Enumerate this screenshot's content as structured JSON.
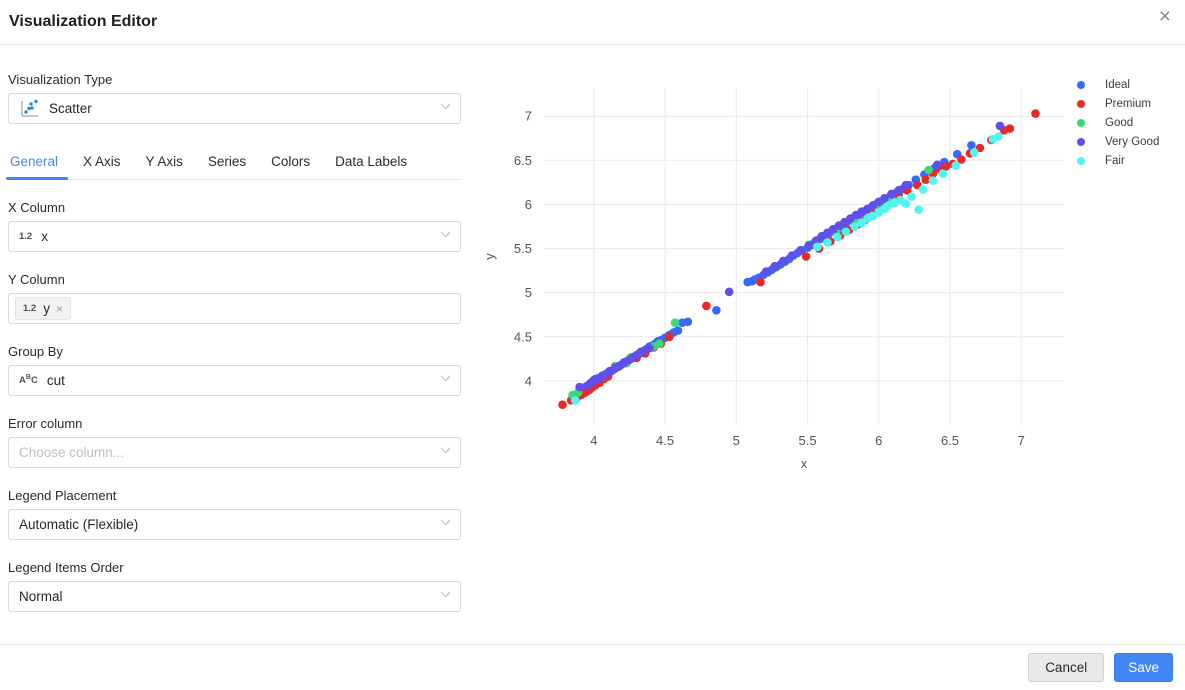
{
  "modal": {
    "title": "Visualization Editor",
    "close_label": "×"
  },
  "editor": {
    "visualization_type": {
      "label": "Visualization Type",
      "value": "Scatter",
      "icon": "scatter-type-icon"
    },
    "tabs": [
      {
        "label": "General",
        "active": true
      },
      {
        "label": "X Axis",
        "active": false
      },
      {
        "label": "Y Axis",
        "active": false
      },
      {
        "label": "Series",
        "active": false
      },
      {
        "label": "Colors",
        "active": false
      },
      {
        "label": "Data Labels",
        "active": false
      }
    ],
    "fields": {
      "x_column": {
        "label": "X Column",
        "value": "x",
        "type_icon": "1.2"
      },
      "y_column": {
        "label": "Y Column",
        "tags": [
          {
            "type_icon": "1.2",
            "value": "y",
            "remove": "×"
          }
        ]
      },
      "group_by": {
        "label": "Group By",
        "value": "cut",
        "type_icon": "ABC"
      },
      "error_column": {
        "label": "Error column",
        "placeholder": "Choose column..."
      },
      "legend_placement": {
        "label": "Legend Placement",
        "value": "Automatic (Flexible)"
      },
      "legend_items_order": {
        "label": "Legend Items Order",
        "value": "Normal"
      }
    },
    "footer": {
      "cancel_label": "Cancel",
      "save_label": "Save"
    }
  },
  "colors": {
    "accent_blue": "#4285f4",
    "grid": "#e9e9e9",
    "tick_text": "#545454"
  },
  "chart_data": {
    "type": "scatter",
    "title": "",
    "xlabel": "x",
    "ylabel": "y",
    "xlim": [
      3.65,
      7.3
    ],
    "ylim": [
      3.5,
      7.32
    ],
    "x_ticks": [
      4,
      4.5,
      5,
      5.5,
      6,
      6.5,
      7
    ],
    "y_ticks": [
      4,
      4.5,
      5,
      5.5,
      6,
      6.5,
      7
    ],
    "grid": true,
    "legend_position": "right",
    "series": [
      {
        "name": "Ideal",
        "color": "#356AFF",
        "points": [
          [
            3.92,
            3.91
          ],
          [
            3.94,
            3.93
          ],
          [
            3.96,
            3.94
          ],
          [
            3.97,
            3.96
          ],
          [
            3.98,
            3.97
          ],
          [
            3.99,
            3.98
          ],
          [
            4.0,
            3.99
          ],
          [
            4.01,
            4.0
          ],
          [
            4.01,
            4.02
          ],
          [
            4.02,
            4.01
          ],
          [
            4.03,
            4.03
          ],
          [
            4.04,
            4.02
          ],
          [
            4.05,
            4.04
          ],
          [
            4.06,
            4.06
          ],
          [
            4.07,
            4.05
          ],
          [
            4.08,
            4.07
          ],
          [
            4.09,
            4.08
          ],
          [
            4.1,
            4.09
          ],
          [
            4.11,
            4.11
          ],
          [
            4.13,
            4.12
          ],
          [
            4.15,
            4.14
          ],
          [
            4.17,
            4.16
          ],
          [
            4.19,
            4.18
          ],
          [
            4.21,
            4.21
          ],
          [
            4.23,
            4.22
          ],
          [
            4.25,
            4.24
          ],
          [
            4.26,
            4.26
          ],
          [
            4.28,
            4.27
          ],
          [
            4.3,
            4.29
          ],
          [
            4.32,
            4.31
          ],
          [
            4.33,
            4.33
          ],
          [
            4.35,
            4.34
          ],
          [
            4.37,
            4.36
          ],
          [
            4.39,
            4.39
          ],
          [
            4.41,
            4.4
          ],
          [
            4.43,
            4.42
          ],
          [
            4.45,
            4.45
          ],
          [
            4.47,
            4.46
          ],
          [
            4.5,
            4.49
          ],
          [
            4.53,
            4.52
          ],
          [
            4.56,
            4.55
          ],
          [
            4.59,
            4.57
          ],
          [
            4.62,
            4.66
          ],
          [
            4.66,
            4.67
          ],
          [
            4.86,
            4.8
          ],
          [
            5.08,
            5.12
          ],
          [
            5.11,
            5.13
          ],
          [
            5.13,
            5.15
          ],
          [
            5.16,
            5.17
          ],
          [
            5.19,
            5.2
          ],
          [
            5.22,
            5.23
          ],
          [
            5.25,
            5.26
          ],
          [
            5.28,
            5.29
          ],
          [
            5.31,
            5.32
          ],
          [
            5.34,
            5.35
          ],
          [
            5.37,
            5.38
          ],
          [
            5.4,
            5.42
          ],
          [
            5.43,
            5.45
          ],
          [
            5.46,
            5.48
          ],
          [
            5.5,
            5.51
          ],
          [
            5.53,
            5.54
          ],
          [
            5.56,
            5.58
          ],
          [
            5.59,
            5.61
          ],
          [
            5.62,
            5.64
          ],
          [
            5.65,
            5.67
          ],
          [
            5.68,
            5.7
          ],
          [
            5.71,
            5.72
          ],
          [
            5.74,
            5.76
          ],
          [
            5.77,
            5.79
          ],
          [
            5.8,
            5.82
          ],
          [
            5.83,
            5.85
          ],
          [
            5.86,
            5.88
          ],
          [
            5.89,
            5.91
          ],
          [
            5.92,
            5.94
          ],
          [
            5.95,
            5.97
          ],
          [
            5.98,
            6.0
          ],
          [
            6.01,
            6.03
          ],
          [
            6.04,
            6.06
          ],
          [
            6.08,
            6.09
          ],
          [
            6.12,
            6.13
          ],
          [
            6.16,
            6.17
          ],
          [
            6.21,
            6.22
          ],
          [
            6.26,
            6.28
          ],
          [
            6.32,
            6.34
          ],
          [
            6.39,
            6.41
          ],
          [
            6.46,
            6.48
          ],
          [
            6.55,
            6.57
          ],
          [
            6.65,
            6.67
          ]
        ]
      },
      {
        "name": "Premium",
        "color": "#E92828",
        "points": [
          [
            3.78,
            3.73
          ],
          [
            3.84,
            3.78
          ],
          [
            3.88,
            3.81
          ],
          [
            3.91,
            3.84
          ],
          [
            3.93,
            3.86
          ],
          [
            3.95,
            3.88
          ],
          [
            3.97,
            3.9
          ],
          [
            3.99,
            3.93
          ],
          [
            4.01,
            3.95
          ],
          [
            4.04,
            3.98
          ],
          [
            4.07,
            4.02
          ],
          [
            4.1,
            4.05
          ],
          [
            4.3,
            4.26
          ],
          [
            4.36,
            4.31
          ],
          [
            4.42,
            4.38
          ],
          [
            4.47,
            4.42
          ],
          [
            4.53,
            4.5
          ],
          [
            4.79,
            4.85
          ],
          [
            5.17,
            5.12
          ],
          [
            5.49,
            5.41
          ],
          [
            5.58,
            5.5
          ],
          [
            5.66,
            5.58
          ],
          [
            5.73,
            5.65
          ],
          [
            5.79,
            5.71
          ],
          [
            5.85,
            5.77
          ],
          [
            5.91,
            5.83
          ],
          [
            5.96,
            5.89
          ],
          [
            6.02,
            5.95
          ],
          [
            6.08,
            6.02
          ],
          [
            6.14,
            6.1
          ],
          [
            6.2,
            6.16
          ],
          [
            6.27,
            6.22
          ],
          [
            6.33,
            6.28
          ],
          [
            6.38,
            6.35
          ],
          [
            6.43,
            6.4
          ],
          [
            6.47,
            6.43
          ],
          [
            6.52,
            6.46
          ],
          [
            6.58,
            6.51
          ],
          [
            6.64,
            6.58
          ],
          [
            6.71,
            6.64
          ],
          [
            6.79,
            6.73
          ],
          [
            6.88,
            6.84
          ],
          [
            6.92,
            6.86
          ],
          [
            7.1,
            7.03
          ]
        ]
      },
      {
        "name": "Good",
        "color": "#3BD973",
        "points": [
          [
            3.85,
            3.84
          ],
          [
            3.89,
            3.87
          ],
          [
            4.15,
            4.17
          ],
          [
            4.23,
            4.2
          ],
          [
            4.26,
            4.27
          ],
          [
            4.42,
            4.39
          ],
          [
            4.46,
            4.42
          ],
          [
            4.57,
            4.66
          ],
          [
            5.54,
            5.56
          ],
          [
            5.7,
            5.69
          ],
          [
            5.83,
            5.82
          ],
          [
            5.92,
            5.94
          ],
          [
            6.0,
            5.99
          ],
          [
            6.07,
            6.03
          ],
          [
            6.35,
            6.39
          ]
        ]
      },
      {
        "name": "Very Good",
        "color": "#604FE9",
        "points": [
          [
            3.9,
            3.93
          ],
          [
            3.95,
            3.94
          ],
          [
            3.98,
            3.98
          ],
          [
            4.0,
            4.01
          ],
          [
            4.03,
            4.02
          ],
          [
            4.06,
            4.05
          ],
          [
            4.09,
            4.08
          ],
          [
            4.12,
            4.11
          ],
          [
            4.15,
            4.15
          ],
          [
            4.18,
            4.17
          ],
          [
            4.21,
            4.2
          ],
          [
            4.24,
            4.23
          ],
          [
            4.26,
            4.25
          ],
          [
            4.29,
            4.28
          ],
          [
            4.32,
            4.31
          ],
          [
            4.35,
            4.34
          ],
          [
            4.39,
            4.37
          ],
          [
            4.95,
            5.01
          ],
          [
            5.21,
            5.24
          ],
          [
            5.27,
            5.3
          ],
          [
            5.33,
            5.36
          ],
          [
            5.39,
            5.42
          ],
          [
            5.45,
            5.48
          ],
          [
            5.51,
            5.54
          ],
          [
            5.56,
            5.59
          ],
          [
            5.6,
            5.64
          ],
          [
            5.64,
            5.68
          ],
          [
            5.68,
            5.72
          ],
          [
            5.72,
            5.76
          ],
          [
            5.76,
            5.8
          ],
          [
            5.8,
            5.84
          ],
          [
            5.84,
            5.88
          ],
          [
            5.88,
            5.92
          ],
          [
            5.92,
            5.95
          ],
          [
            5.96,
            5.99
          ],
          [
            6.0,
            6.03
          ],
          [
            6.04,
            6.07
          ],
          [
            6.09,
            6.12
          ],
          [
            6.14,
            6.16
          ],
          [
            6.19,
            6.22
          ],
          [
            6.41,
            6.45
          ],
          [
            6.85,
            6.89
          ]
        ]
      },
      {
        "name": "Fair",
        "color": "#50F5ED",
        "points": [
          [
            3.87,
            3.78
          ],
          [
            5.57,
            5.52
          ],
          [
            5.64,
            5.57
          ],
          [
            5.71,
            5.63
          ],
          [
            5.77,
            5.69
          ],
          [
            5.83,
            5.75
          ],
          [
            5.88,
            5.79
          ],
          [
            5.92,
            5.84
          ],
          [
            5.96,
            5.87
          ],
          [
            6.0,
            5.91
          ],
          [
            6.04,
            5.95
          ],
          [
            6.07,
            5.99
          ],
          [
            6.11,
            6.02
          ],
          [
            6.15,
            6.05
          ],
          [
            6.19,
            6.01
          ],
          [
            6.23,
            6.09
          ],
          [
            6.28,
            5.94
          ],
          [
            6.31,
            6.17
          ],
          [
            6.38,
            6.27
          ],
          [
            6.45,
            6.35
          ],
          [
            6.54,
            6.44
          ],
          [
            6.67,
            6.59
          ],
          [
            6.8,
            6.74
          ],
          [
            6.84,
            6.77
          ]
        ]
      }
    ]
  }
}
